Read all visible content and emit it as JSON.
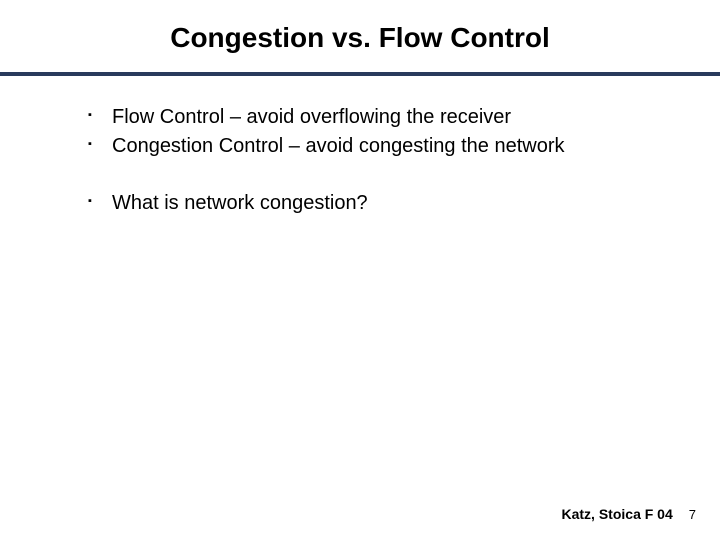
{
  "title": {
    "text": "Congestion vs. Flow Control",
    "fontsize": 28,
    "fontweight": "bold",
    "color": "#000000"
  },
  "divider": {
    "color": "#293a5c",
    "height": 4
  },
  "content": {
    "bullet_marker": "▪",
    "bullet_color": "#000000",
    "text_color": "#000000",
    "fontsize": 20,
    "groups": [
      {
        "items": [
          "Flow Control – avoid overflowing the receiver",
          "Congestion Control – avoid congesting the network"
        ]
      },
      {
        "items": [
          "What is network congestion?"
        ]
      }
    ]
  },
  "footer": {
    "credit": "Katz, Stoica F 04",
    "credit_fontsize": 14,
    "credit_fontweight": "bold",
    "page": "7",
    "page_fontsize": 13,
    "color": "#000000"
  },
  "background_color": "#ffffff"
}
